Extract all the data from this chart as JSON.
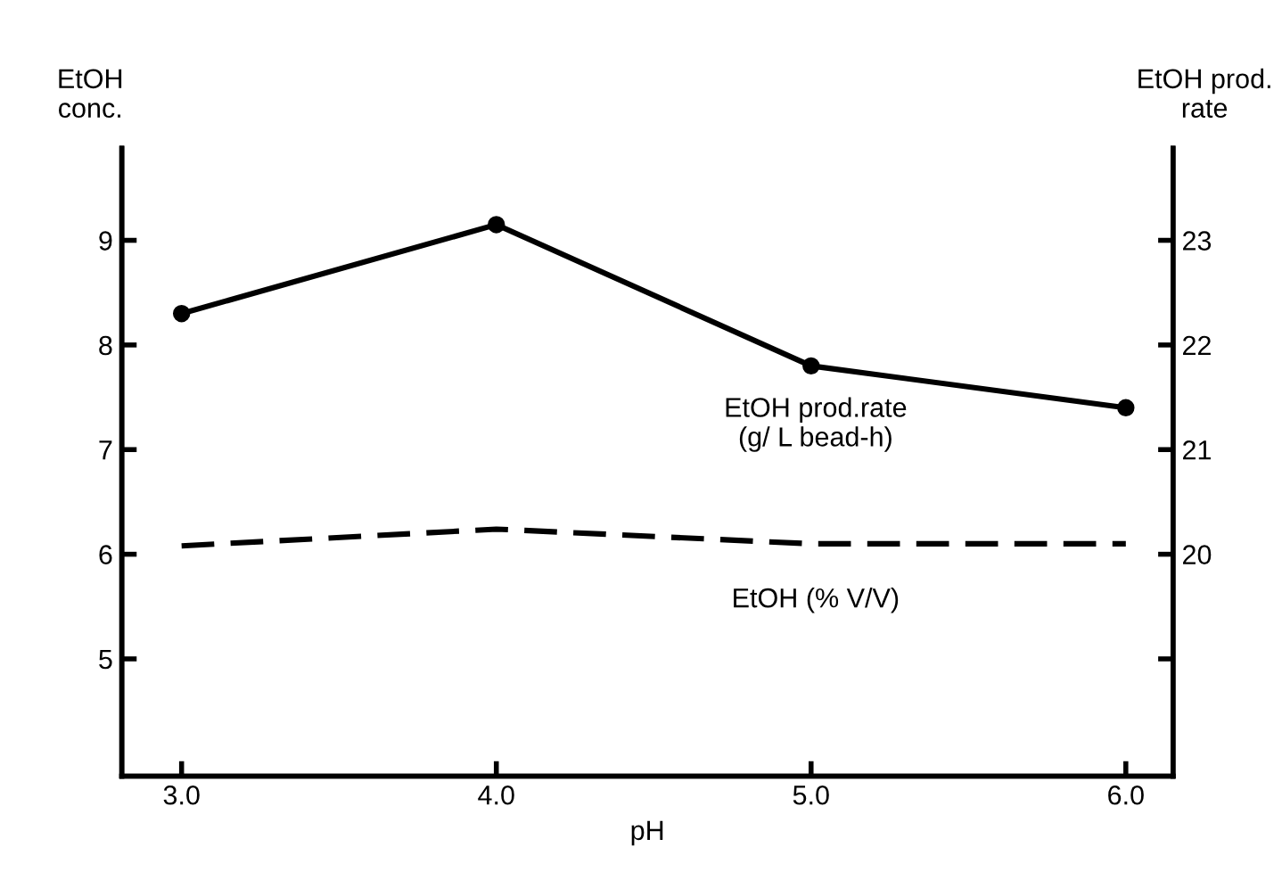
{
  "chart_data": {
    "type": "line",
    "xlabel": "pH",
    "ylabel": "EtOH\nconc.",
    "y2label": "EtOH prod.\nrate",
    "x": [
      3.0,
      4.0,
      5.0,
      6.0
    ],
    "series": [
      {
        "name": "EtOH prod.rate\n(g/ L bead-h)",
        "color": "#000000",
        "values": [
          22.3,
          23.15,
          21.8,
          21.4
        ],
        "axis": "y2",
        "marker": "circle",
        "line_style": "solid"
      },
      {
        "name": "EtOH (% V/V)",
        "color": "#000000",
        "values": [
          6.08,
          6.24,
          6.1,
          6.1
        ],
        "marker": "none",
        "line_style": "dashed"
      }
    ],
    "xlim": [
      2.81,
      6.15
    ],
    "xticks": [
      {
        "value": 3.0,
        "label": "3.0"
      },
      {
        "value": 4.0,
        "label": "4.0"
      },
      {
        "value": 5.0,
        "label": "5.0"
      },
      {
        "value": 6.0,
        "label": "6.0"
      }
    ],
    "ylim": [
      3.88,
      9.88
    ],
    "yticks": [
      5,
      6,
      7,
      8,
      9
    ],
    "y2lim": [
      17.88,
      23.88
    ],
    "y2ticks": [
      {
        "value": 19,
        "label": null
      },
      20,
      21,
      22,
      23
    ],
    "grid": false,
    "legend": false
  }
}
